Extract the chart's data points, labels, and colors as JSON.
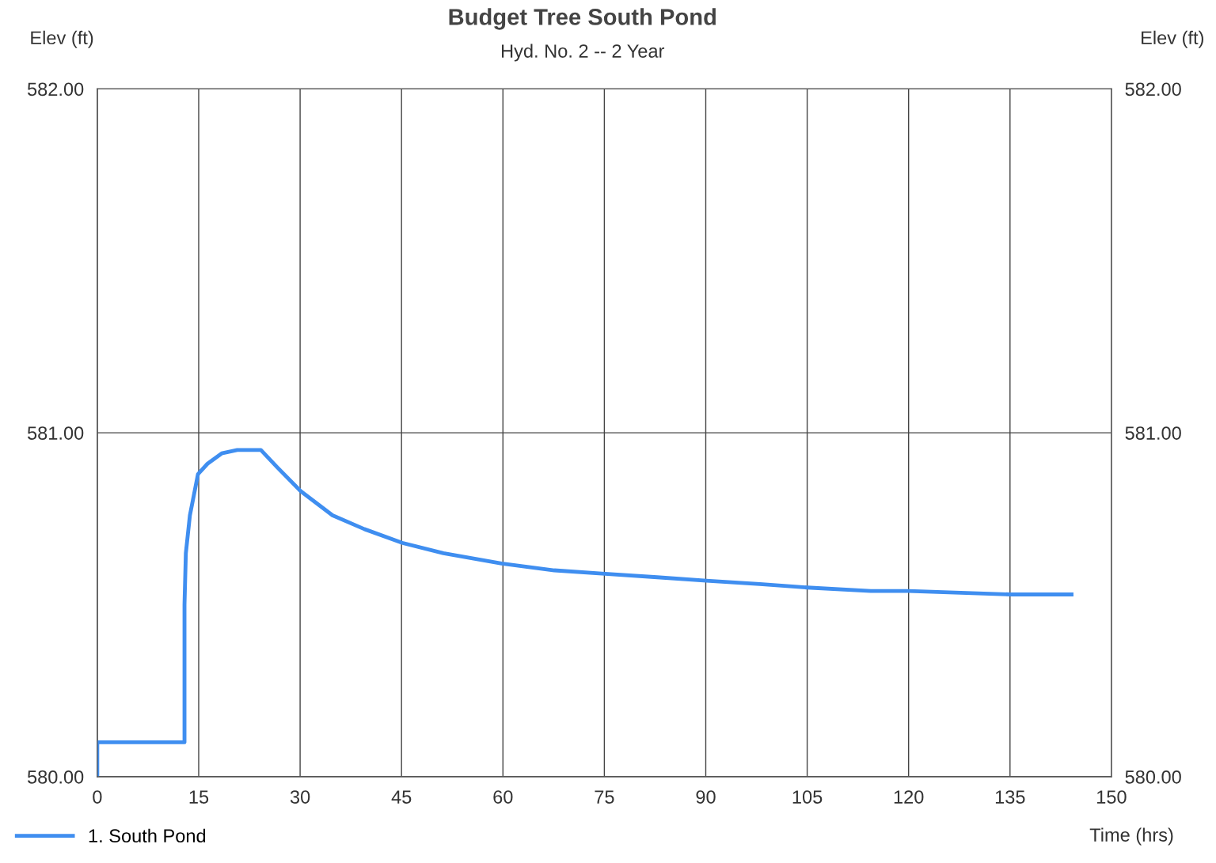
{
  "chart_data": {
    "type": "line",
    "title": "Budget Tree South Pond",
    "subtitle": "Hyd. No. 2 -- 2 Year",
    "xlabel": "Time (hrs)",
    "ylabel": "Elev (ft)",
    "y2label": "Elev (ft)",
    "series": [
      {
        "name": "1. South Pond",
        "color": "#3f8ef0",
        "x": [
          0,
          0,
          12.9,
          12.9,
          13.1,
          13.7,
          14.9,
          16.3,
          18.4,
          20.7,
          24.2,
          26.6,
          30.1,
          34.8,
          39.5,
          45.1,
          51.2,
          59.8,
          67.6,
          75.1,
          82.8,
          90.1,
          98.0,
          105.0,
          114.4,
          120.0,
          135.0,
          144.1
        ],
        "values": [
          580.0,
          580.1,
          580.1,
          580.5,
          580.65,
          580.76,
          580.88,
          580.91,
          580.94,
          580.95,
          580.95,
          580.9,
          580.83,
          580.76,
          580.72,
          580.68,
          580.65,
          580.62,
          580.6,
          580.59,
          580.58,
          580.57,
          580.56,
          580.55,
          580.54,
          580.54,
          580.53,
          580.53
        ]
      }
    ],
    "xlim": [
      0,
      150
    ],
    "xticks": [
      0,
      15,
      30,
      45,
      60,
      75,
      90,
      105,
      120,
      135,
      150
    ],
    "ylim": [
      580,
      582
    ],
    "yticks": [
      {
        "value": 580,
        "label": "580.00"
      },
      {
        "value": 581,
        "label": "581.00"
      },
      {
        "value": 582,
        "label": "582.00"
      }
    ],
    "y2lim": [
      580,
      582
    ],
    "y2ticks": [
      {
        "value": 580,
        "label": "580.00"
      },
      {
        "value": 581,
        "label": "581.00"
      },
      {
        "value": 582,
        "label": "582.00"
      }
    ],
    "grid": true,
    "legend": "bottom left",
    "marker": "none",
    "line_style": "solid"
  }
}
